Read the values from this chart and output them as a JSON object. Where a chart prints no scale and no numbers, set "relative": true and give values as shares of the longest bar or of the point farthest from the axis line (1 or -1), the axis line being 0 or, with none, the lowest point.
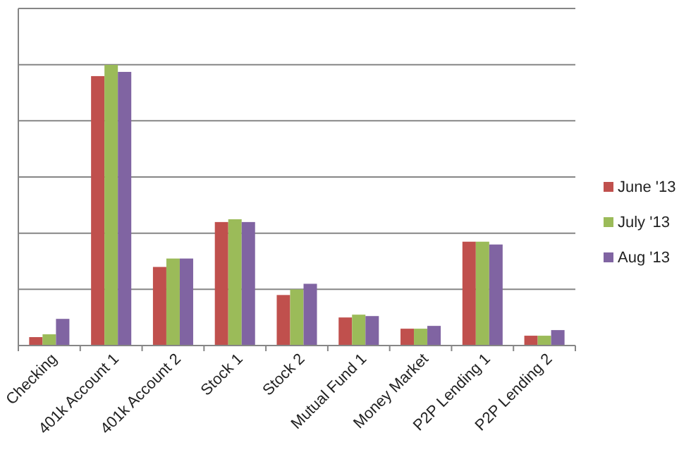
{
  "chart_data": {
    "type": "bar",
    "relative": true,
    "grid": true,
    "legend": "right",
    "categories": [
      "Checking",
      "401k Account 1",
      "401k Account 2",
      "Stock 1",
      "Stock 2",
      "Mutual Fund 1",
      "Money Market",
      "P2P Lending 1",
      "P2P Lending 2"
    ],
    "series": [
      {
        "name": "June '13",
        "color": "#c0504d",
        "values": [
          0.03,
          0.96,
          0.28,
          0.44,
          0.18,
          0.1,
          0.06,
          0.37,
          0.035
        ]
      },
      {
        "name": "July '13",
        "color": "#9bbb59",
        "values": [
          0.04,
          1,
          0.31,
          0.45,
          0.2,
          0.11,
          0.06,
          0.37,
          0.035
        ]
      },
      {
        "name": "Aug '13",
        "color": "#8064a2",
        "values": [
          0.095,
          0.975,
          0.31,
          0.44,
          0.22,
          0.105,
          0.07,
          0.36,
          0.055
        ]
      }
    ]
  }
}
